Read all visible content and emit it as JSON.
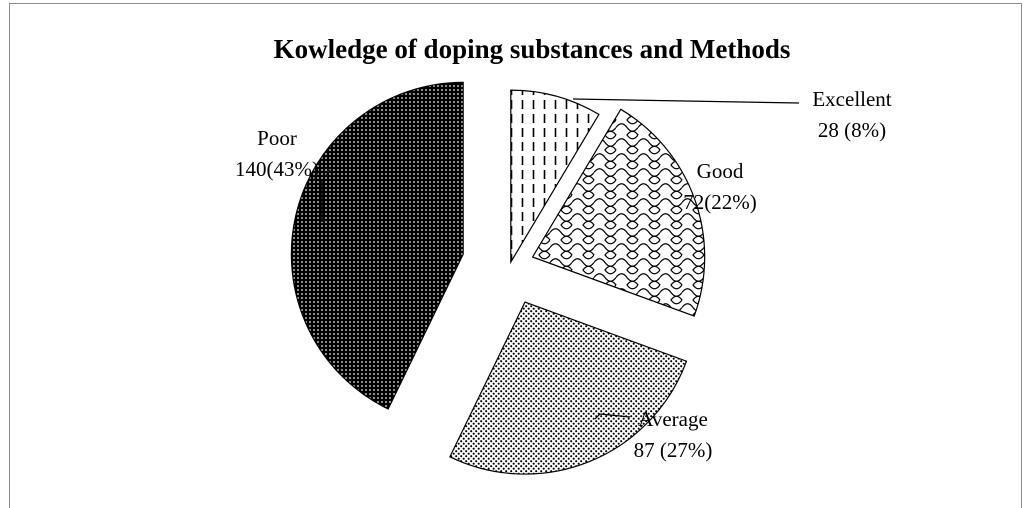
{
  "chart_data": {
    "type": "pie",
    "title": "Kowledge of doping substances and Methods",
    "exploded": true,
    "slices": [
      {
        "category": "Excellent",
        "value": 28,
        "percent": 8,
        "value_text": "28 (8%)",
        "pattern": "vertical-dashes"
      },
      {
        "category": "Good",
        "value": 72,
        "percent": 22,
        "value_text": "72(22%)",
        "pattern": "scales"
      },
      {
        "category": "Average",
        "value": 87,
        "percent": 27,
        "value_text": "87 (27%)",
        "pattern": "light-dots"
      },
      {
        "category": "Poor",
        "value": 140,
        "percent": 43,
        "value_text": "140(43%)",
        "pattern": "dense-dots"
      }
    ]
  }
}
